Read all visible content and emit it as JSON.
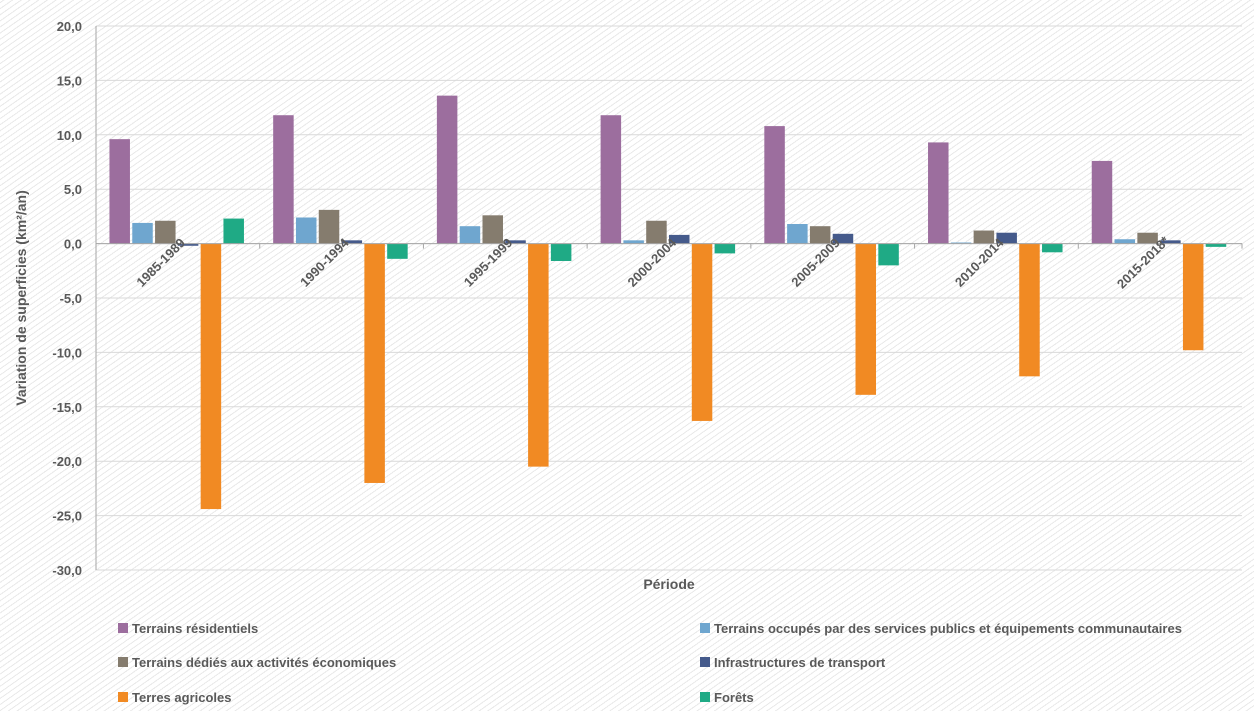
{
  "chart_data": {
    "type": "bar",
    "xlabel": "Période",
    "ylabel": "Variation de superficies (km²/an)",
    "ylim": [
      -30,
      20
    ],
    "ytick_step": 5,
    "grid": true,
    "legend_position": "bottom",
    "categories": [
      "1985-1989",
      "1990-1994",
      "1995-1999",
      "2000-2004",
      "2005-2009",
      "2010-2014",
      "2015-2018*"
    ],
    "series": [
      {
        "name": "Terrains résidentiels",
        "color": "#9C6E9E",
        "values": [
          9.6,
          11.8,
          13.6,
          11.8,
          10.8,
          9.3,
          7.6
        ]
      },
      {
        "name": "Terrains occupés par des services publics et équipements communautaires",
        "color": "#6FA6CF",
        "values": [
          1.9,
          2.4,
          1.6,
          0.3,
          1.8,
          0.1,
          0.4
        ]
      },
      {
        "name": "Terrains dédiés aux activités économiques",
        "color": "#857C6E",
        "values": [
          2.1,
          3.1,
          2.6,
          2.1,
          1.6,
          1.2,
          1.0
        ]
      },
      {
        "name": "Infrastructures de transport",
        "color": "#455A8B",
        "values": [
          -0.2,
          0.3,
          0.3,
          0.8,
          0.9,
          1.0,
          0.3
        ]
      },
      {
        "name": "Terres agricoles",
        "color": "#F18A23",
        "values": [
          -24.4,
          -22.0,
          -20.5,
          -16.3,
          -13.9,
          -12.2,
          -9.8
        ]
      },
      {
        "name": "Forêts",
        "color": "#1FAA85",
        "values": [
          2.3,
          -1.4,
          -1.6,
          -0.9,
          -2.0,
          -0.8,
          -0.3
        ]
      }
    ]
  }
}
